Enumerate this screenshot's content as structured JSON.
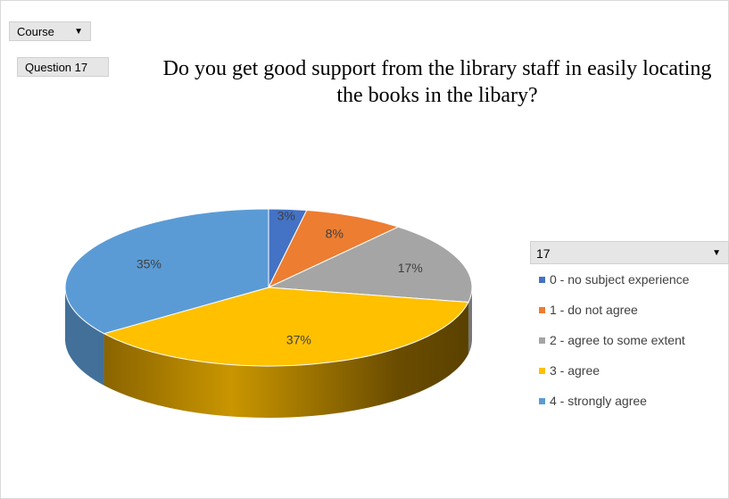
{
  "controls": {
    "course_filter": "Course",
    "question_filter": "Question 17",
    "legend_filter": "17"
  },
  "chart_data": {
    "type": "pie",
    "style": "3d",
    "title": "Do you get good support from the library staff in easily locating the books in the libary?",
    "legend_position": "right",
    "categories": [
      "0 - no subject experience",
      "1 - do not agree",
      "2 - agree to some extent",
      "3 - agree",
      "4 - strongly agree"
    ],
    "values": [
      3,
      8,
      17,
      37,
      35
    ],
    "labels": [
      "3%",
      "8%",
      "17%",
      "37%",
      "35%"
    ],
    "colors": [
      "#4472c4",
      "#ed7d31",
      "#a5a5a5",
      "#ffc000",
      "#5b9bd5"
    ]
  }
}
